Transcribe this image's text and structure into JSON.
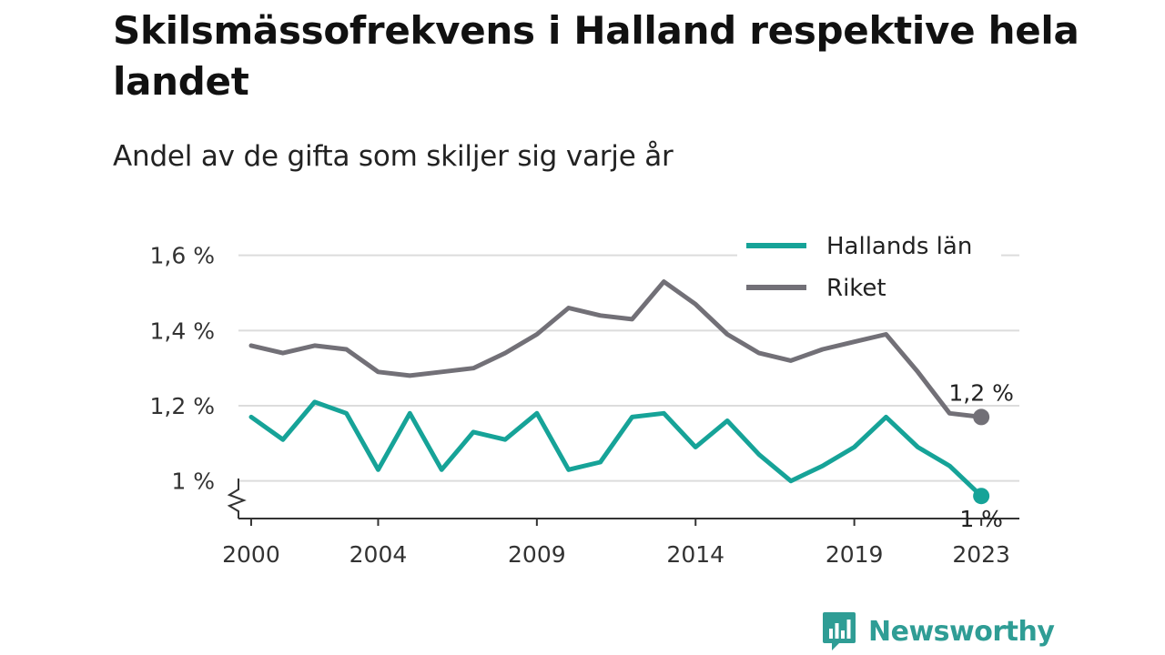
{
  "header": {
    "title": "Skilsmässofrekvens i Halland respektive hela landet",
    "subtitle": "Andel av de gifta som skiljer sig varje år"
  },
  "brand": {
    "name": "Newsworthy",
    "icon": "bar-chart-speech-bubble-icon",
    "color": "#2f9d95"
  },
  "chart_data": {
    "type": "line",
    "x": [
      2000,
      2001,
      2002,
      2003,
      2004,
      2005,
      2006,
      2007,
      2008,
      2009,
      2010,
      2011,
      2012,
      2013,
      2014,
      2015,
      2016,
      2017,
      2018,
      2019,
      2020,
      2021,
      2022,
      2023
    ],
    "x_ticks": [
      {
        "value": 2000,
        "label": "2000"
      },
      {
        "value": 2004,
        "label": "2004"
      },
      {
        "value": 2009,
        "label": "2009"
      },
      {
        "value": 2014,
        "label": "2014"
      },
      {
        "value": 2019,
        "label": "2019"
      },
      {
        "value": 2023,
        "label": "2023"
      }
    ],
    "y_ticks": [
      {
        "value": 1.0,
        "label": "1 %"
      },
      {
        "value": 1.2,
        "label": "1,2 %"
      },
      {
        "value": 1.4,
        "label": "1,4 %"
      },
      {
        "value": 1.6,
        "label": "1,6 %"
      }
    ],
    "xlim": [
      1999.6,
      2024.2
    ],
    "ylim": [
      0.9,
      1.65
    ],
    "axis_break": true,
    "grid": true,
    "legend_position": "top-right",
    "series": [
      {
        "name": "Hallands län",
        "color": "#16a398",
        "values": [
          1.17,
          1.11,
          1.21,
          1.18,
          1.03,
          1.18,
          1.03,
          1.13,
          1.11,
          1.18,
          1.03,
          1.05,
          1.17,
          1.18,
          1.09,
          1.16,
          1.07,
          1.0,
          1.04,
          1.09,
          1.17,
          1.09,
          1.04,
          0.96
        ],
        "end_label": "1 %"
      },
      {
        "name": "Riket",
        "color": "#727077",
        "values": [
          1.36,
          1.34,
          1.36,
          1.35,
          1.29,
          1.28,
          1.29,
          1.3,
          1.34,
          1.39,
          1.46,
          1.44,
          1.43,
          1.53,
          1.47,
          1.39,
          1.34,
          1.32,
          1.35,
          1.37,
          1.39,
          1.29,
          1.18,
          1.17
        ],
        "end_label": "1,2 %"
      }
    ]
  }
}
